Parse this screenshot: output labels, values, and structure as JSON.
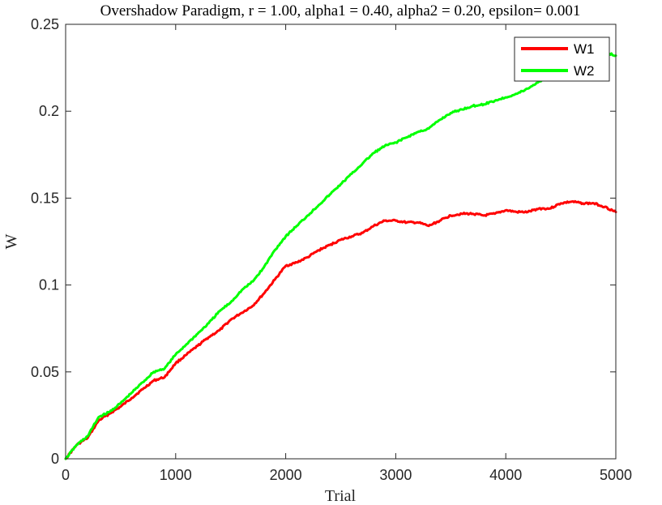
{
  "chart_data": {
    "type": "line",
    "title": "Overshadow Paradigm, r = 1.00, alpha1 = 0.40, alpha2 = 0.20, epsilon= 0.001",
    "xlabel": "Trial",
    "ylabel": "W",
    "xlim": [
      0,
      5000
    ],
    "ylim": [
      0,
      0.25
    ],
    "xticks": [
      0,
      1000,
      2000,
      3000,
      4000,
      5000
    ],
    "xtick_labels": [
      "0",
      "1000",
      "2000",
      "3000",
      "4000",
      "5000"
    ],
    "yticks": [
      0,
      0.05,
      0.1,
      0.15,
      0.2,
      0.25
    ],
    "ytick_labels": [
      "0",
      "0.05",
      "0.1",
      "0.15",
      "0.2",
      "0.25"
    ],
    "grid": false,
    "legend_position": "top-right",
    "series": [
      {
        "name": "W1",
        "color": "#ff0000",
        "x": [
          0,
          100,
          200,
          300,
          400,
          500,
          600,
          700,
          800,
          900,
          1000,
          1100,
          1200,
          1300,
          1400,
          1500,
          1600,
          1700,
          1800,
          1900,
          2000,
          2100,
          2200,
          2300,
          2400,
          2500,
          2600,
          2700,
          2800,
          2900,
          3000,
          3100,
          3200,
          3300,
          3400,
          3500,
          3600,
          3700,
          3800,
          3900,
          4000,
          4100,
          4200,
          4300,
          4400,
          4500,
          4600,
          4700,
          4800,
          4900,
          5000
        ],
        "values": [
          0,
          0.008,
          0.012,
          0.022,
          0.026,
          0.03,
          0.035,
          0.04,
          0.045,
          0.047,
          0.055,
          0.06,
          0.065,
          0.07,
          0.074,
          0.08,
          0.084,
          0.088,
          0.095,
          0.103,
          0.111,
          0.113,
          0.116,
          0.12,
          0.123,
          0.126,
          0.128,
          0.13,
          0.134,
          0.137,
          0.137,
          0.136,
          0.136,
          0.134,
          0.137,
          0.14,
          0.141,
          0.141,
          0.14,
          0.141,
          0.143,
          0.142,
          0.142,
          0.144,
          0.144,
          0.147,
          0.148,
          0.147,
          0.147,
          0.145,
          0.142
        ]
      },
      {
        "name": "W2",
        "color": "#00ff00",
        "x": [
          0,
          100,
          200,
          300,
          400,
          500,
          600,
          700,
          800,
          900,
          1000,
          1100,
          1200,
          1300,
          1400,
          1500,
          1600,
          1700,
          1800,
          1900,
          2000,
          2100,
          2200,
          2300,
          2400,
          2500,
          2600,
          2700,
          2800,
          2900,
          3000,
          3100,
          3200,
          3300,
          3400,
          3500,
          3600,
          3700,
          3800,
          3900,
          4000,
          4100,
          4200,
          4300,
          4400,
          4500,
          4600,
          4700,
          4800,
          4900,
          5000
        ],
        "values": [
          0,
          0.008,
          0.013,
          0.024,
          0.027,
          0.032,
          0.038,
          0.044,
          0.05,
          0.052,
          0.06,
          0.066,
          0.072,
          0.078,
          0.085,
          0.09,
          0.097,
          0.102,
          0.11,
          0.12,
          0.128,
          0.134,
          0.14,
          0.146,
          0.152,
          0.158,
          0.164,
          0.17,
          0.176,
          0.18,
          0.182,
          0.185,
          0.188,
          0.19,
          0.195,
          0.199,
          0.201,
          0.203,
          0.204,
          0.206,
          0.208,
          0.21,
          0.213,
          0.217,
          0.22,
          0.224,
          0.229,
          0.231,
          0.233,
          0.234,
          0.232
        ]
      }
    ]
  }
}
